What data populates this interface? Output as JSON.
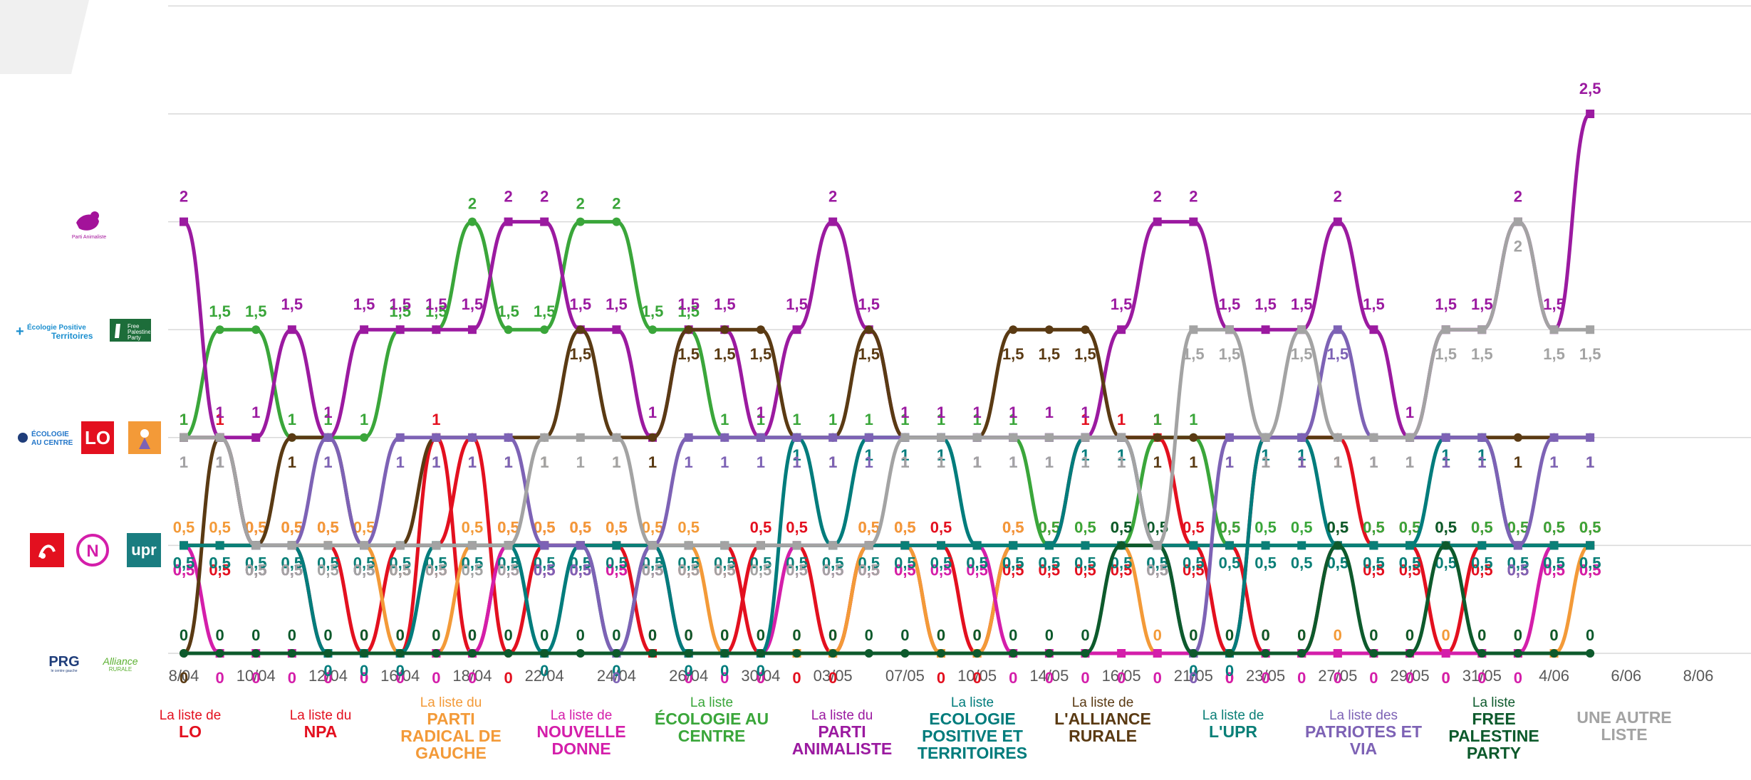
{
  "chart_data": {
    "type": "line",
    "ylim": [
      0,
      2.5
    ],
    "grid": true,
    "legend_position": "bottom",
    "x_ticks": [
      "8/04",
      "10/04",
      "12/04",
      "16/04",
      "18/04",
      "22/04",
      "24/04",
      "26/04",
      "30/04",
      "03/05",
      "07/05",
      "10/05",
      "14/05",
      "16/05",
      "21/05",
      "23/05",
      "27/05",
      "29/05",
      "31/05",
      "4/06",
      "6/06",
      "8/06"
    ],
    "series": [
      {
        "name": "La liste de LO",
        "color": "#e3101f",
        "values": [
          1,
          1,
          0.5,
          0.5,
          0.5,
          0,
          0,
          1,
          0,
          0.5,
          0.5,
          0.5,
          0.5,
          0,
          0,
          0,
          0.5,
          0.5,
          0,
          0.5,
          0.5,
          0.5,
          0,
          0.5,
          0.5,
          1,
          1,
          1,
          0.5,
          0.5,
          0,
          0,
          0.5,
          0.5,
          0.5,
          0.5,
          0.5,
          0.5,
          0.5,
          0.5
        ]
      },
      {
        "name": "La liste du NPA",
        "color": "#e3101f",
        "values": [
          0.5,
          0.5,
          0.5,
          0.5,
          0,
          0,
          0.5,
          0.5,
          1,
          0,
          0.5,
          0.5,
          0.5,
          0.5,
          0.5,
          0.5,
          0,
          0,
          0,
          0.5,
          0.5,
          0,
          0,
          0.5,
          0.5,
          0.5,
          0.5,
          0.5,
          0.5,
          0,
          1,
          1,
          1,
          0.5,
          0.5,
          0,
          0.5,
          0.5,
          0.5,
          0.5
        ]
      },
      {
        "name": "La liste du PARTI RADICAL DE GAUCHE",
        "color": "#f39a38",
        "values": [
          0.5,
          0.5,
          0.5,
          0.5,
          0.5,
          0.5,
          0,
          0,
          0.5,
          0.5,
          0.5,
          0.5,
          0.5,
          0.5,
          0.5,
          0,
          0,
          0,
          0,
          0.5,
          0.5,
          0,
          0,
          0.5,
          0.5,
          0.5,
          0.5,
          0,
          0,
          0,
          0,
          0,
          0,
          0,
          0,
          0,
          0,
          0,
          0,
          0.5
        ]
      },
      {
        "name": "La liste de NOUVELLE DONNE",
        "color": "#d41eaa",
        "values": [
          0.5,
          0,
          0,
          0,
          0,
          0,
          0,
          0,
          0,
          0.5,
          0.5,
          0.5,
          0.5,
          0.5,
          0,
          0,
          0,
          0.5,
          0.5,
          0.5,
          0.5,
          0.5,
          0.5,
          0,
          0,
          0,
          0,
          0,
          0,
          0,
          0,
          0,
          0,
          0,
          0,
          0,
          0,
          0,
          0.5,
          0.5
        ]
      },
      {
        "name": "La liste ÉCOLOGIE AU CENTRE",
        "color": "#3aa63a",
        "values": [
          1,
          1.5,
          1.5,
          1,
          1,
          1,
          1.5,
          1.5,
          2,
          1.5,
          1.5,
          2,
          2,
          1.5,
          1.5,
          1,
          1,
          1,
          1,
          1,
          1,
          1,
          1,
          1,
          0.5,
          0.5,
          0.5,
          1,
          1,
          0.5,
          0.5,
          0.5,
          0.5,
          0.5,
          0.5,
          0.5,
          0.5,
          0.5,
          0.5,
          0.5
        ]
      },
      {
        "name": "La liste du PARTI ANIMALISTE",
        "color": "#9b1aa0",
        "values": [
          2,
          1,
          1,
          1.5,
          1,
          1.5,
          1.5,
          1.5,
          1.5,
          2,
          2,
          1.5,
          1.5,
          1,
          1.5,
          1.5,
          1,
          1.5,
          2,
          1.5,
          1,
          1,
          1,
          1,
          1,
          1,
          1.5,
          2,
          2,
          1.5,
          1.5,
          1.5,
          2,
          1.5,
          1,
          1.5,
          1.5,
          2,
          1.5,
          2.5
        ]
      },
      {
        "name": "La liste ECOLOGIE POSITIVE ET TERRITOIRES",
        "color": "#007c7c",
        "values": [
          0.5,
          0.5,
          0.5,
          0.5,
          0,
          0,
          0,
          0.5,
          0.5,
          0.5,
          0,
          0.5,
          0,
          0.5,
          0,
          0,
          0,
          1,
          0.5,
          1,
          1,
          1,
          0.5,
          0.5,
          0.5,
          1,
          1,
          0.5,
          0,
          0,
          1,
          1,
          0.5,
          0.5,
          0.5,
          1,
          1,
          0.5,
          0.5,
          0.5
        ]
      },
      {
        "name": "La liste de L'ALLIANCE RURALE",
        "color": "#5a3a13",
        "values": [
          0,
          1,
          0.5,
          1,
          1,
          0.5,
          0.5,
          1,
          1,
          1,
          1,
          1.5,
          1,
          1,
          1.5,
          1.5,
          1.5,
          1,
          1,
          1.5,
          1,
          1,
          1,
          1.5,
          1.5,
          1.5,
          1,
          1,
          1,
          1,
          1,
          1,
          1,
          1,
          1,
          1,
          1,
          1,
          1,
          1
        ]
      },
      {
        "name": "La liste de L'UPR",
        "color": "#0a7f77",
        "values": [
          0.5,
          0.5,
          0.5,
          0.5,
          0.5,
          0.5,
          0.5,
          0.5,
          0.5,
          0.5,
          0.5,
          0.5,
          0.5,
          0.5,
          0.5,
          0.5,
          0.5,
          0.5,
          0.5,
          0.5,
          0.5,
          0.5,
          0.5,
          0.5,
          0.5,
          0.5,
          0.5,
          0.5,
          0.5,
          0.5,
          0.5,
          0.5,
          0.5,
          0.5,
          0.5,
          0.5,
          0.5,
          0.5,
          0.5,
          0.5
        ]
      },
      {
        "name": "La liste des PATRIOTES ET VIA",
        "color": "#7d62b5",
        "values": [
          1,
          1,
          0.5,
          0.5,
          1,
          0.5,
          1,
          1,
          1,
          1,
          0.5,
          0.5,
          0,
          0.5,
          1,
          1,
          1,
          1,
          1,
          1,
          1,
          1,
          1,
          1,
          1,
          1,
          1,
          0.5,
          0,
          1,
          1,
          1,
          1.5,
          1,
          1,
          1,
          1,
          0.5,
          1,
          1
        ]
      },
      {
        "name": "La liste FREE PALESTINE PARTY",
        "color": "#0d5a2c",
        "values": [
          0,
          0,
          0,
          0,
          0,
          0,
          0,
          0,
          0,
          0,
          0,
          0,
          0,
          0,
          0,
          0,
          0,
          0,
          0,
          0,
          0,
          0,
          0,
          0,
          0,
          0,
          0.5,
          0.5,
          0,
          0,
          0,
          0,
          0.5,
          0,
          0,
          0.5,
          0,
          0,
          0,
          0
        ]
      },
      {
        "name": "UNE AUTRE LISTE",
        "color": "#a3a3a3",
        "values": [
          1,
          1,
          0.5,
          0.5,
          0.5,
          0.5,
          0.5,
          0.5,
          0.5,
          0.5,
          1,
          1,
          1,
          0.5,
          0.5,
          0.5,
          0.5,
          0.5,
          0.5,
          0.5,
          1,
          1,
          1,
          1,
          1,
          1,
          1,
          0.5,
          1.5,
          1.5,
          1,
          1.5,
          1,
          1,
          1,
          1.5,
          1.5,
          2,
          1.5,
          1.5
        ]
      }
    ]
  },
  "legend": [
    {
      "pre": "La liste de",
      "main": "LO",
      "color": "#e3101f"
    },
    {
      "pre": "La liste du",
      "main": "NPA",
      "color": "#e3101f"
    },
    {
      "pre": "La liste du",
      "main": "PARTI RADICAL DE GAUCHE",
      "color": "#f39a38"
    },
    {
      "pre": "La liste de",
      "main": "NOUVELLE DONNE",
      "color": "#d41eaa"
    },
    {
      "pre": "La liste",
      "main": "ÉCOLOGIE AU CENTRE",
      "color": "#3aa63a"
    },
    {
      "pre": "La liste du",
      "main": "PARTI ANIMALISTE",
      "color": "#9b1aa0"
    },
    {
      "pre": "La liste",
      "main": "ECOLOGIE POSITIVE ET TERRITOIRES",
      "color": "#007c7c"
    },
    {
      "pre": "La liste de",
      "main": "L'ALLIANCE RURALE",
      "color": "#5a3a13"
    },
    {
      "pre": "La liste de",
      "main": "L'UPR",
      "color": "#0a7f77"
    },
    {
      "pre": "La liste des",
      "main": "PATRIOTES ET VIA",
      "color": "#7d62b5"
    },
    {
      "pre": "La liste",
      "main": "FREE PALESTINE PARTY",
      "color": "#0d5a2c"
    },
    {
      "pre": "",
      "main": "UNE AUTRE LISTE",
      "color": "#a3a3a3"
    }
  ],
  "logos": {
    "animaliste": "Parti Animaliste",
    "ecologie_positive": "Écologie Positive Territoires",
    "free_palestine": "Free Palestine Party",
    "ecologie_centre": "ÉCOLOGIE AU CENTRE",
    "lo": "LO",
    "upr": "upr",
    "prg": "PRG",
    "prg_sub": "le centre gauche",
    "alliance": "Alliance",
    "alliance_sub": "RURALE"
  }
}
